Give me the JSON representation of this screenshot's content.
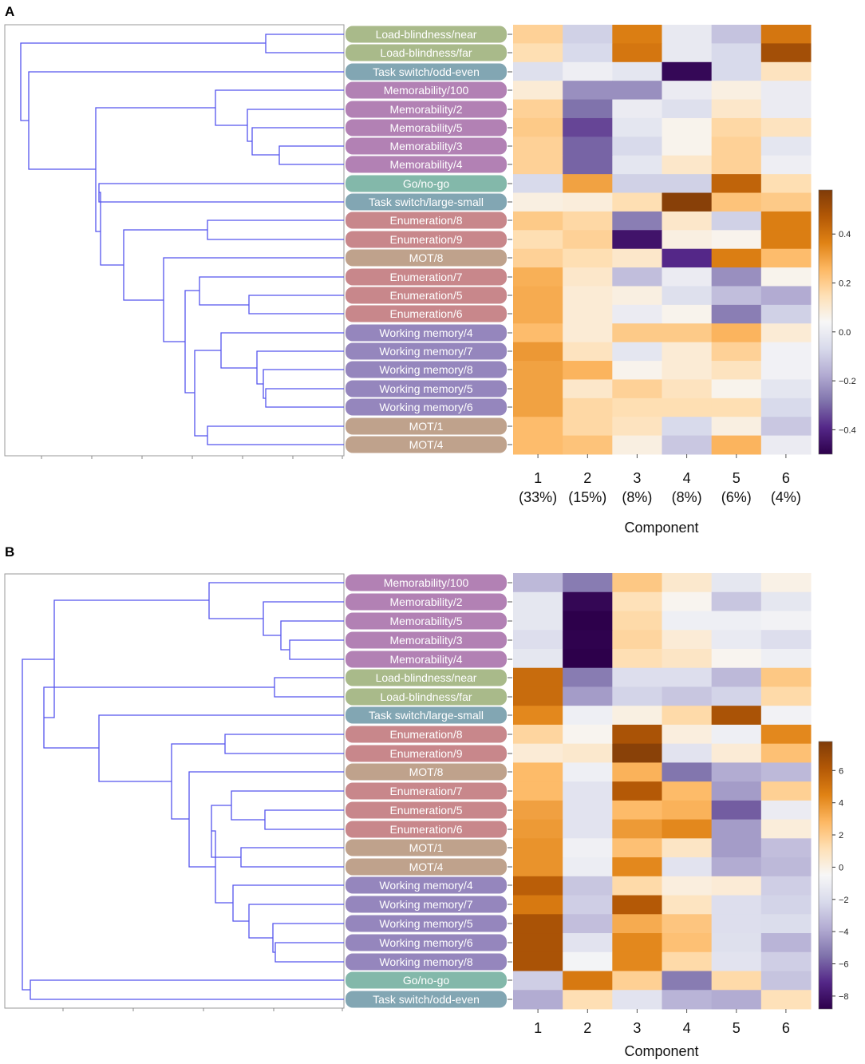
{
  "chart_data": [
    {
      "panel": "A",
      "type": "heatmap",
      "xlabel": "Component",
      "columns": [
        "1",
        "2",
        "3",
        "4",
        "5",
        "6"
      ],
      "column_variance": [
        "(33%)",
        "(15%)",
        "(8%)",
        "(8%)",
        "(6%)",
        "(4%)"
      ],
      "colorbar": {
        "min": -0.5,
        "max": 0.58,
        "ticks": [
          0.4,
          0.2,
          0.0,
          -0.2,
          -0.4
        ],
        "tick_labels": [
          "0.4",
          "0.2",
          "0.0",
          "−0.2",
          "−0.4"
        ]
      },
      "rows": [
        {
          "label": "Load-blindness/near",
          "category": "load",
          "values": [
            0.16,
            -0.12,
            0.36,
            -0.05,
            -0.15,
            0.38
          ]
        },
        {
          "label": "Load-blindness/far",
          "category": "load",
          "values": [
            0.12,
            -0.1,
            0.38,
            -0.05,
            -0.1,
            0.5
          ]
        },
        {
          "label": "Task switch/odd-even",
          "category": "switch",
          "values": [
            -0.08,
            -0.03,
            -0.06,
            -0.48,
            -0.1,
            0.1
          ]
        },
        {
          "label": "Memorability/100",
          "category": "memo",
          "values": [
            0.06,
            -0.25,
            -0.25,
            -0.04,
            0.04,
            -0.04
          ]
        },
        {
          "label": "Memorability/2",
          "category": "memo",
          "values": [
            0.16,
            -0.3,
            -0.04,
            -0.08,
            0.08,
            -0.04
          ]
        },
        {
          "label": "Memorability/5",
          "category": "memo",
          "values": [
            0.18,
            -0.36,
            -0.06,
            0.02,
            0.14,
            0.1
          ]
        },
        {
          "label": "Memorability/3",
          "category": "memo",
          "values": [
            0.16,
            -0.32,
            -0.1,
            0.02,
            0.16,
            -0.06
          ]
        },
        {
          "label": "Memorability/4",
          "category": "memo",
          "values": [
            0.16,
            -0.32,
            -0.06,
            0.08,
            0.16,
            -0.03
          ]
        },
        {
          "label": "Go/no-go",
          "category": "gonogo",
          "values": [
            -0.1,
            0.28,
            -0.12,
            -0.12,
            0.43,
            0.12
          ]
        },
        {
          "label": "Task switch/large-small",
          "category": "switch",
          "values": [
            0.04,
            0.05,
            0.12,
            0.56,
            0.2,
            0.18
          ]
        },
        {
          "label": "Enumeration/8",
          "category": "enum",
          "values": [
            0.18,
            0.14,
            -0.28,
            0.08,
            -0.12,
            0.36
          ]
        },
        {
          "label": "Enumeration/9",
          "category": "enum",
          "values": [
            0.12,
            0.16,
            -0.45,
            0.04,
            0.02,
            0.36
          ]
        },
        {
          "label": "MOT/8",
          "category": "mot",
          "values": [
            0.16,
            0.12,
            0.08,
            -0.4,
            0.36,
            0.22
          ]
        },
        {
          "label": "Enumeration/7",
          "category": "enum",
          "values": [
            0.25,
            0.08,
            -0.16,
            -0.04,
            -0.25,
            0.02
          ]
        },
        {
          "label": "Enumeration/5",
          "category": "enum",
          "values": [
            0.26,
            0.06,
            0.04,
            -0.08,
            -0.16,
            -0.2
          ]
        },
        {
          "label": "Enumeration/6",
          "category": "enum",
          "values": [
            0.26,
            0.06,
            -0.04,
            0.02,
            -0.28,
            -0.12
          ]
        },
        {
          "label": "Working memory/4",
          "category": "wm",
          "values": [
            0.22,
            0.06,
            0.18,
            0.18,
            0.24,
            0.06
          ]
        },
        {
          "label": "Working memory/7",
          "category": "wm",
          "values": [
            0.3,
            0.1,
            -0.06,
            0.06,
            0.16,
            -0.02
          ]
        },
        {
          "label": "Working memory/8",
          "category": "wm",
          "values": [
            0.28,
            0.24,
            0.02,
            0.06,
            0.1,
            -0.02
          ]
        },
        {
          "label": "Working memory/5",
          "category": "wm",
          "values": [
            0.28,
            0.08,
            0.16,
            0.1,
            0.02,
            -0.06
          ]
        },
        {
          "label": "Working memory/6",
          "category": "wm",
          "values": [
            0.28,
            0.14,
            0.12,
            0.12,
            0.12,
            -0.1
          ]
        },
        {
          "label": "MOT/1",
          "category": "mot",
          "values": [
            0.22,
            0.14,
            0.1,
            -0.1,
            0.04,
            -0.14
          ]
        },
        {
          "label": "MOT/4",
          "category": "mot",
          "values": [
            0.22,
            0.2,
            0.04,
            -0.14,
            0.24,
            -0.04
          ]
        }
      ]
    },
    {
      "panel": "B",
      "type": "heatmap",
      "xlabel": "Component",
      "columns": [
        "1",
        "2",
        "3",
        "4",
        "5",
        "6"
      ],
      "colorbar": {
        "min": -8.8,
        "max": 7.8,
        "ticks": [
          6,
          4,
          2,
          0,
          -2,
          -4,
          -6,
          -8
        ],
        "tick_labels": [
          "6",
          "4",
          "2",
          "0",
          "−2",
          "−4",
          "−6",
          "−8"
        ]
      },
      "rows": [
        {
          "label": "Memorability/100",
          "category": "memo",
          "values": [
            -3,
            -5,
            2.5,
            1,
            -1,
            0.4
          ]
        },
        {
          "label": "Memorability/2",
          "category": "memo",
          "values": [
            -1,
            -8.5,
            1.5,
            0.2,
            -2.5,
            -1
          ]
        },
        {
          "label": "Memorability/5",
          "category": "memo",
          "values": [
            -1,
            -9,
            1.8,
            -0.5,
            -0.5,
            -0.3
          ]
        },
        {
          "label": "Memorability/3",
          "category": "memo",
          "values": [
            -1.5,
            -8.7,
            2,
            0.8,
            -0.8,
            -1.5
          ]
        },
        {
          "label": "Memorability/4",
          "category": "memo",
          "values": [
            -1,
            -9,
            1.6,
            1.2,
            0.2,
            -0.5
          ]
        },
        {
          "label": "Load-blindness/near",
          "category": "load",
          "values": [
            5.5,
            -5,
            -1.5,
            -1.5,
            -3,
            2.5
          ]
        },
        {
          "label": "Load-blindness/far",
          "category": "load",
          "values": [
            5.5,
            -4,
            -2,
            -2.5,
            -2,
            1.8
          ]
        },
        {
          "label": "Task switch/large-small",
          "category": "switch",
          "values": [
            4.5,
            -0.5,
            0.5,
            1.8,
            6.5,
            -0.3
          ]
        },
        {
          "label": "Enumeration/8",
          "category": "enum",
          "values": [
            2,
            0.2,
            6.5,
            0.6,
            -0.5,
            4.5
          ]
        },
        {
          "label": "Enumeration/9",
          "category": "enum",
          "values": [
            0.8,
            1,
            7.5,
            -1.2,
            0.8,
            2.8
          ]
        },
        {
          "label": "MOT/8",
          "category": "mot",
          "values": [
            3,
            -0.5,
            3.3,
            -5.2,
            -3.5,
            -3
          ]
        },
        {
          "label": "Enumeration/7",
          "category": "enum",
          "values": [
            3,
            -1.2,
            6.2,
            3,
            -4,
            2.2
          ]
        },
        {
          "label": "Enumeration/5",
          "category": "enum",
          "values": [
            3.8,
            -1.2,
            3,
            3.3,
            -5.8,
            -0.7
          ]
        },
        {
          "label": "Enumeration/6",
          "category": "enum",
          "values": [
            4,
            -1.2,
            4,
            4.5,
            -4,
            0.7
          ]
        },
        {
          "label": "MOT/1",
          "category": "mot",
          "values": [
            4.2,
            -0.4,
            2.8,
            1.2,
            -4,
            -2.8
          ]
        },
        {
          "label": "MOT/4",
          "category": "mot",
          "values": [
            4.2,
            -0.6,
            4.5,
            -1.2,
            -3.5,
            -3
          ]
        },
        {
          "label": "Working memory/4",
          "category": "wm",
          "values": [
            6,
            -2.5,
            1.8,
            0.6,
            0.8,
            -2.2
          ]
        },
        {
          "label": "Working memory/7",
          "category": "wm",
          "values": [
            5,
            -2.2,
            6.2,
            1.3,
            -1.5,
            -2
          ]
        },
        {
          "label": "Working memory/5",
          "category": "wm",
          "values": [
            6.5,
            -2.8,
            3.5,
            2.6,
            -1.5,
            -1.6
          ]
        },
        {
          "label": "Working memory/6",
          "category": "wm",
          "values": [
            6.5,
            -1.2,
            4.5,
            2.8,
            -1.4,
            -3.2
          ]
        },
        {
          "label": "Working memory/8",
          "category": "wm",
          "values": [
            6.5,
            -0.2,
            4.5,
            1.8,
            -1.2,
            -2.2
          ]
        },
        {
          "label": "Go/no-go",
          "category": "gonogo",
          "values": [
            -2.2,
            5,
            2.2,
            -5,
            1.8,
            -2.6
          ]
        },
        {
          "label": "Task switch/odd-even",
          "category": "switch",
          "values": [
            -3.5,
            1.6,
            -1.2,
            -3.2,
            -3.5,
            1.5
          ]
        }
      ]
    }
  ]
}
